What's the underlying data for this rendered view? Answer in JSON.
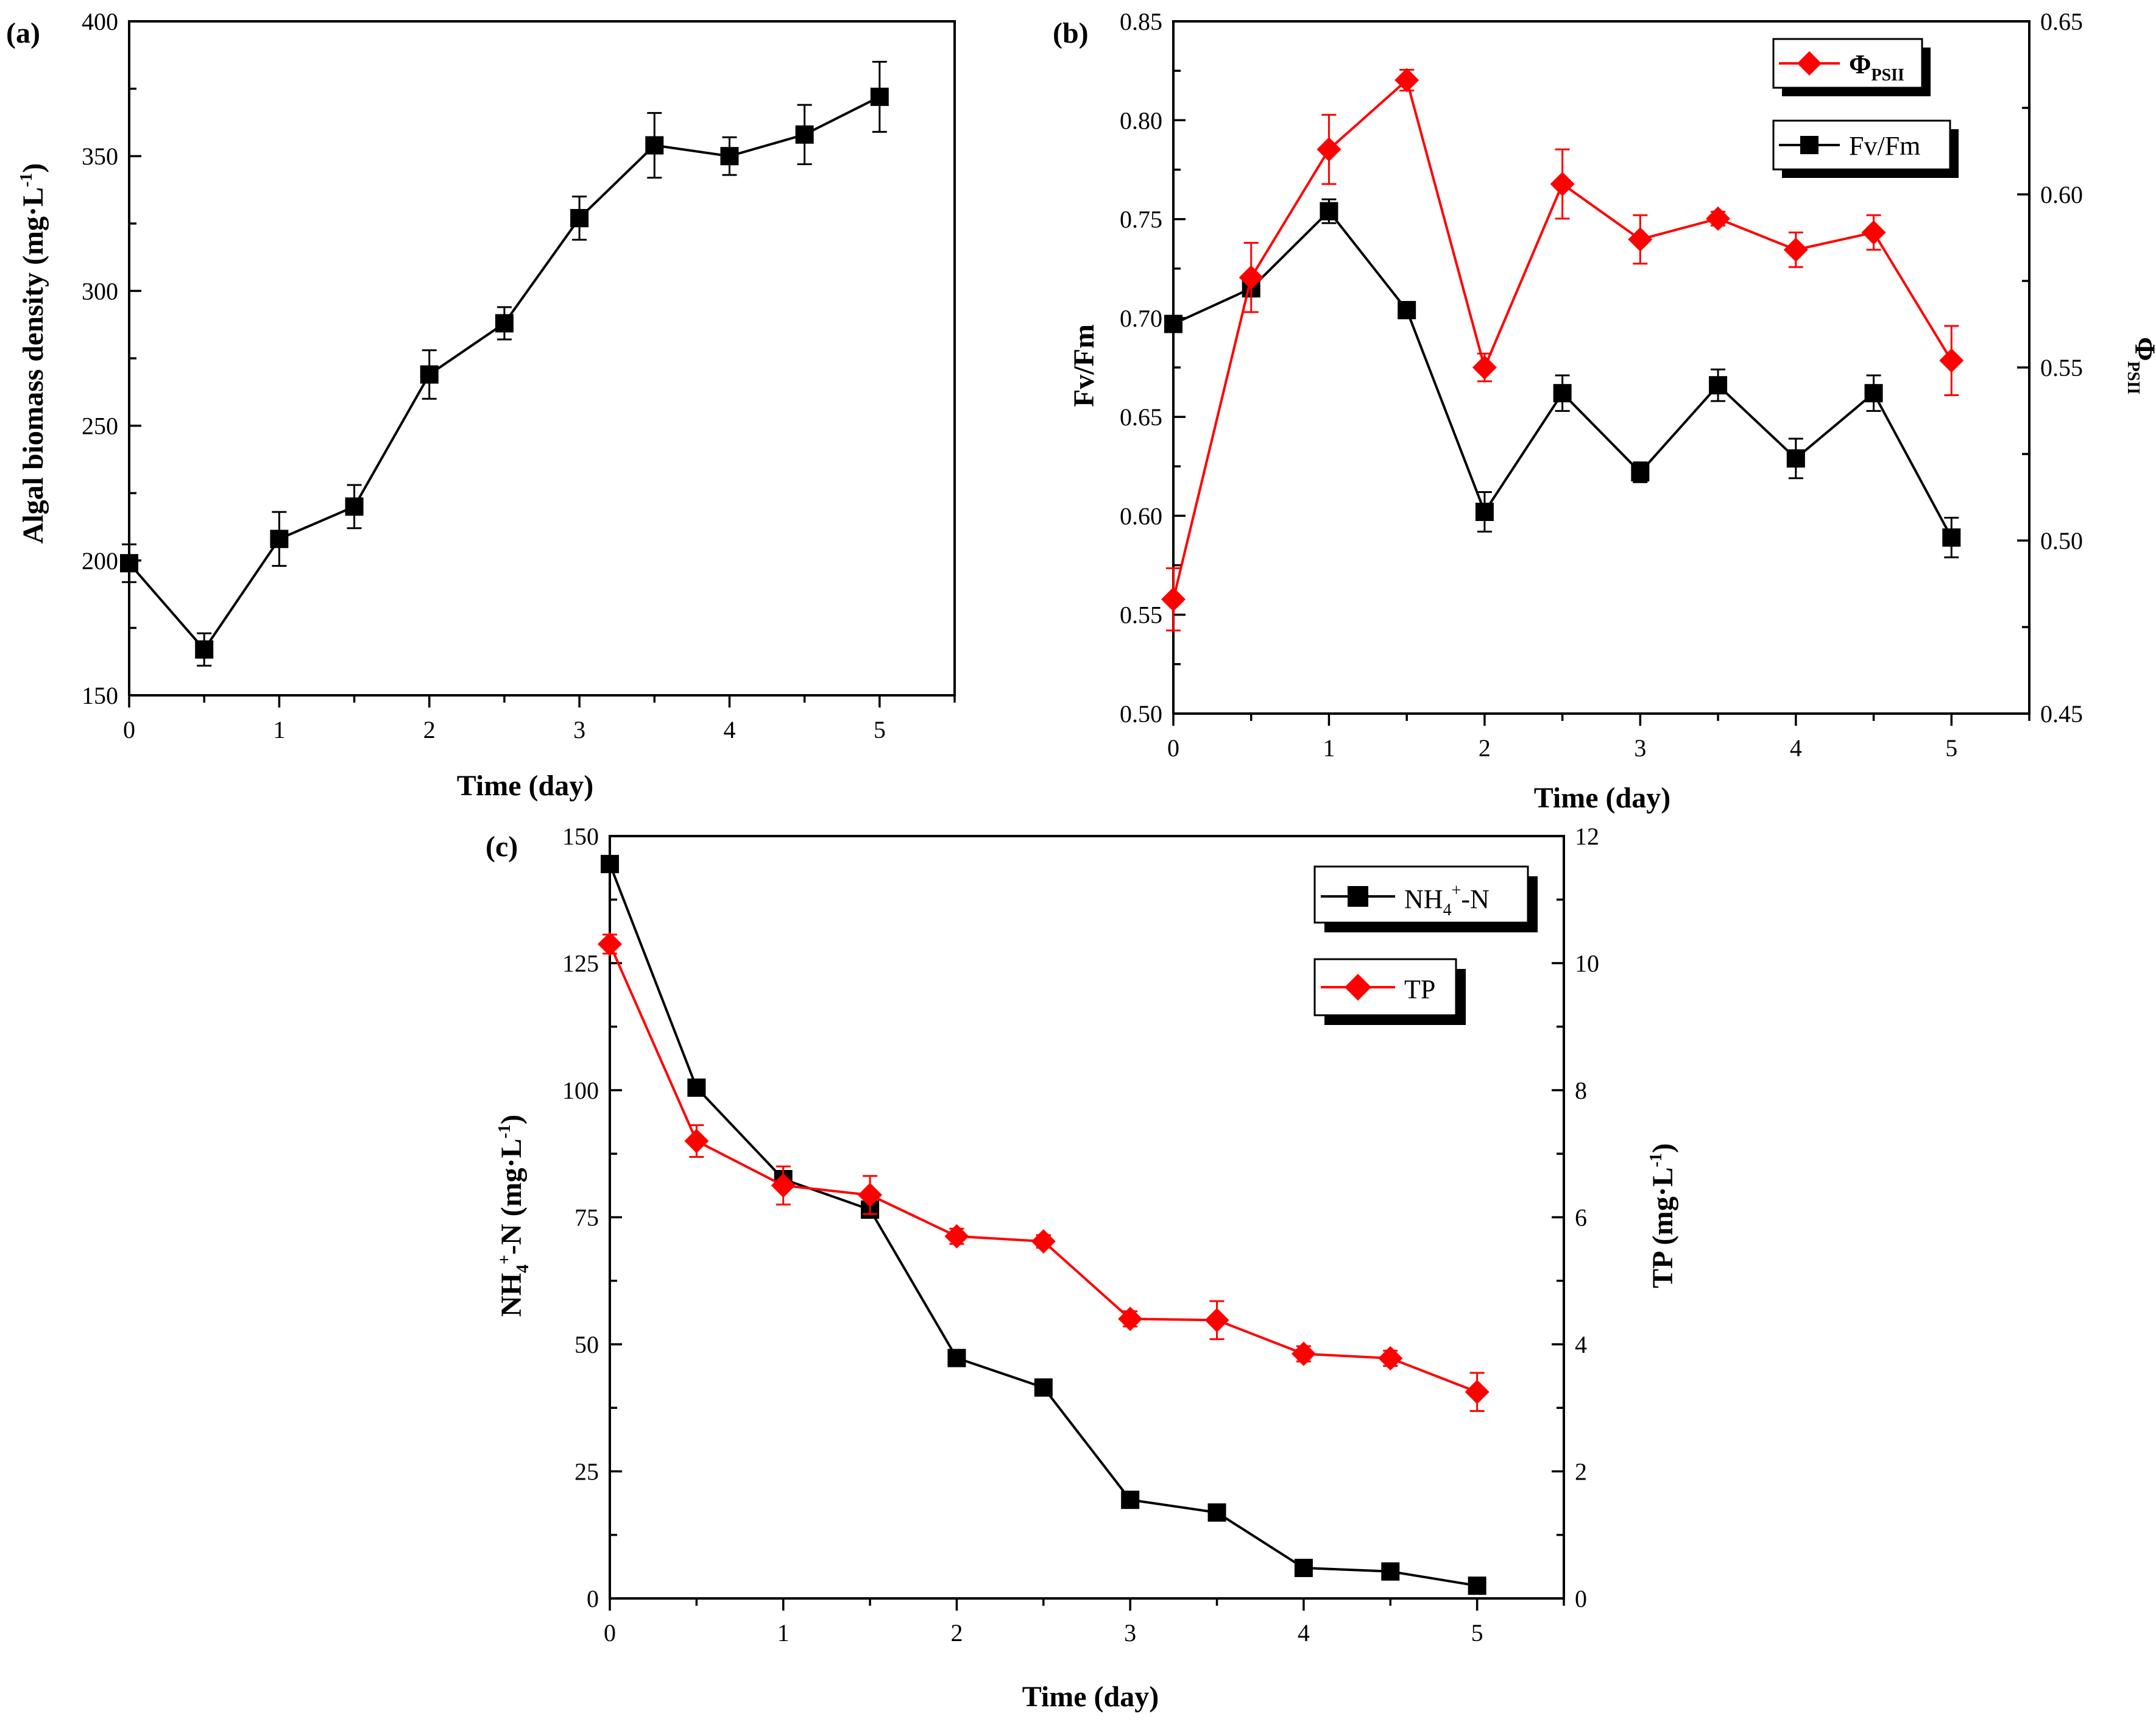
{
  "colors": {
    "black_series": "#000000",
    "red_series": "#ff0000",
    "axis": "#000000"
  },
  "chart_data": [
    {
      "panel": "(a)",
      "type": "line",
      "xlabel": "Time (day)",
      "ylabel": "Algal biomass density (mg·L",
      "ylabel_sup": "-1",
      "ylabel_close": ")",
      "xlim": [
        0,
        5.5
      ],
      "ylim": [
        150,
        400
      ],
      "xticks": [
        0,
        1,
        2,
        3,
        4,
        5
      ],
      "yticks": [
        150,
        200,
        250,
        300,
        350,
        400
      ],
      "series": [
        {
          "name": "Algal biomass density",
          "color": "#000000",
          "marker": "square",
          "x": [
            0,
            0.5,
            1,
            1.5,
            2,
            2.5,
            3,
            3.5,
            4,
            4.5,
            5
          ],
          "y": [
            199,
            167,
            208,
            220,
            269,
            288,
            327,
            354,
            350,
            358,
            372
          ],
          "err": [
            7,
            6,
            10,
            8,
            9,
            6,
            8,
            12,
            7,
            11,
            13
          ]
        }
      ]
    },
    {
      "panel": "(b)",
      "type": "line",
      "xlabel": "Time (day)",
      "ylabel": "Fv/Fm",
      "ylabel_right": "Φ",
      "ylabel_right_sub": "PSII",
      "xlim": [
        0,
        5.5
      ],
      "ylim": [
        0.5,
        0.85
      ],
      "ylim_right": [
        0.45,
        0.65
      ],
      "xticks": [
        0,
        1,
        2,
        3,
        4,
        5
      ],
      "yticks": [
        "0.50",
        "0.55",
        "0.60",
        "0.65",
        "0.70",
        "0.75",
        "0.80",
        "0.85"
      ],
      "yticks_right": [
        "0.45",
        "0.50",
        "0.55",
        "0.60",
        "0.65"
      ],
      "legend": [
        {
          "label": "Φ",
          "sub": "PSII",
          "color": "#ff0000",
          "marker": "diamond"
        },
        {
          "label": "Fv/Fm",
          "color": "#000000",
          "marker": "square"
        }
      ],
      "series": [
        {
          "name": "Fv/Fm",
          "axis": "left",
          "color": "#000000",
          "marker": "square",
          "x": [
            0,
            0.5,
            1,
            1.5,
            2,
            2.5,
            3,
            3.5,
            4,
            4.5,
            5
          ],
          "y": [
            0.697,
            0.715,
            0.754,
            0.704,
            0.602,
            0.662,
            0.622,
            0.666,
            0.629,
            0.662,
            0.589
          ],
          "err": [
            0.002,
            0.003,
            0.006,
            0.002,
            0.01,
            0.009,
            0.005,
            0.008,
            0.01,
            0.009,
            0.01
          ]
        },
        {
          "name": "ΦPSII",
          "axis": "right",
          "color": "#ff0000",
          "marker": "diamond",
          "x": [
            0,
            0.5,
            1,
            1.5,
            2,
            2.5,
            3,
            3.5,
            4,
            4.5,
            5
          ],
          "y": [
            0.483,
            0.576,
            0.613,
            0.633,
            0.55,
            0.603,
            0.587,
            0.593,
            0.584,
            0.589,
            0.552
          ],
          "err": [
            0.009,
            0.01,
            0.01,
            0.003,
            0.004,
            0.01,
            0.007,
            0.002,
            0.005,
            0.005,
            0.01
          ]
        }
      ]
    },
    {
      "panel": "(c)",
      "type": "line",
      "xlabel": "Time (day)",
      "ylabel_parts": [
        "NH",
        "4",
        "+",
        "-N (mg·L",
        "-1",
        ")"
      ],
      "ylabel_right": "TP (mg·L",
      "ylabel_right_sup": "-1",
      "ylabel_right_close": ")",
      "xlim": [
        0,
        5.5
      ],
      "ylim": [
        0,
        150
      ],
      "ylim_right": [
        0,
        12
      ],
      "xticks": [
        0,
        1,
        2,
        3,
        4,
        5
      ],
      "yticks": [
        0,
        25,
        50,
        75,
        100,
        125,
        150
      ],
      "yticks_right": [
        0,
        2,
        4,
        6,
        8,
        10,
        12
      ],
      "legend": [
        {
          "label_parts": [
            "NH",
            "4",
            "+",
            "-N"
          ],
          "color": "#000000",
          "marker": "square"
        },
        {
          "label": "TP",
          "color": "#ff0000",
          "marker": "diamond"
        }
      ],
      "series": [
        {
          "name": "NH4+-N",
          "axis": "left",
          "color": "#000000",
          "marker": "square",
          "x": [
            0,
            0.5,
            1,
            1.5,
            2,
            2.5,
            3,
            3.5,
            4,
            4.5,
            5
          ],
          "y": [
            144.5,
            100.5,
            82.5,
            76.5,
            47.3,
            41.5,
            19.4,
            16.9,
            6.0,
            5.3,
            2.5
          ],
          "err": [
            1.0,
            1.0,
            1.0,
            1.0,
            1.0,
            1.0,
            1.0,
            1.0,
            1.0,
            1.0,
            1.0
          ]
        },
        {
          "name": "TP",
          "axis": "right",
          "color": "#ff0000",
          "marker": "diamond",
          "x": [
            0,
            0.5,
            1,
            1.5,
            2,
            2.5,
            3,
            3.5,
            4,
            4.5,
            5
          ],
          "y": [
            10.3,
            7.2,
            6.5,
            6.35,
            5.7,
            5.62,
            4.4,
            4.38,
            3.85,
            3.78,
            3.25
          ],
          "err": [
            0.15,
            0.25,
            0.3,
            0.3,
            0.12,
            0.1,
            0.12,
            0.3,
            0.12,
            0.12,
            0.3
          ]
        }
      ]
    }
  ]
}
